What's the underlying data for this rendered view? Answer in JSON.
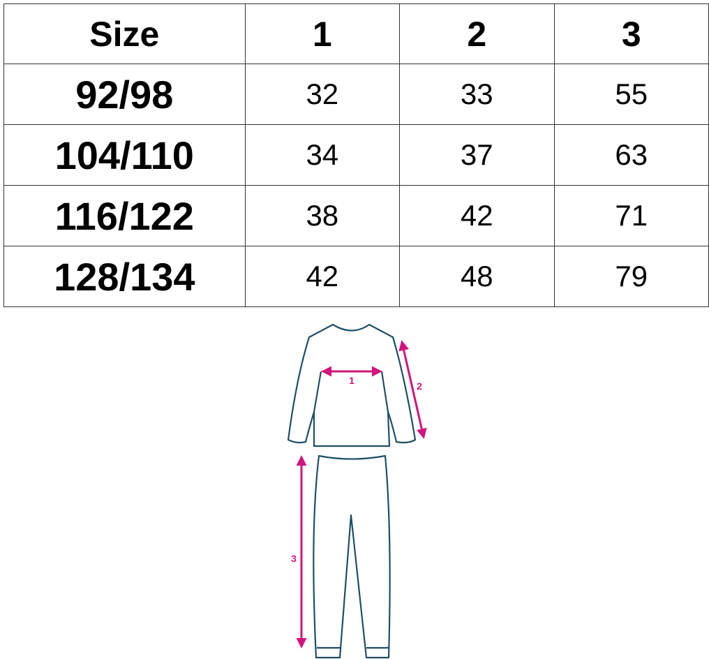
{
  "table": {
    "headers": [
      "Size",
      "1",
      "2",
      "3"
    ],
    "rows": [
      [
        "92/98",
        "32",
        "33",
        "55"
      ],
      [
        "104/110",
        "34",
        "37",
        "63"
      ],
      [
        "116/122",
        "38",
        "42",
        "71"
      ],
      [
        "128/134",
        "42",
        "48",
        "79"
      ]
    ]
  },
  "diagram": {
    "labels": [
      "1",
      "2",
      "3"
    ],
    "colors": {
      "outline": "#1f4e66",
      "arrow": "#d0157e"
    }
  }
}
